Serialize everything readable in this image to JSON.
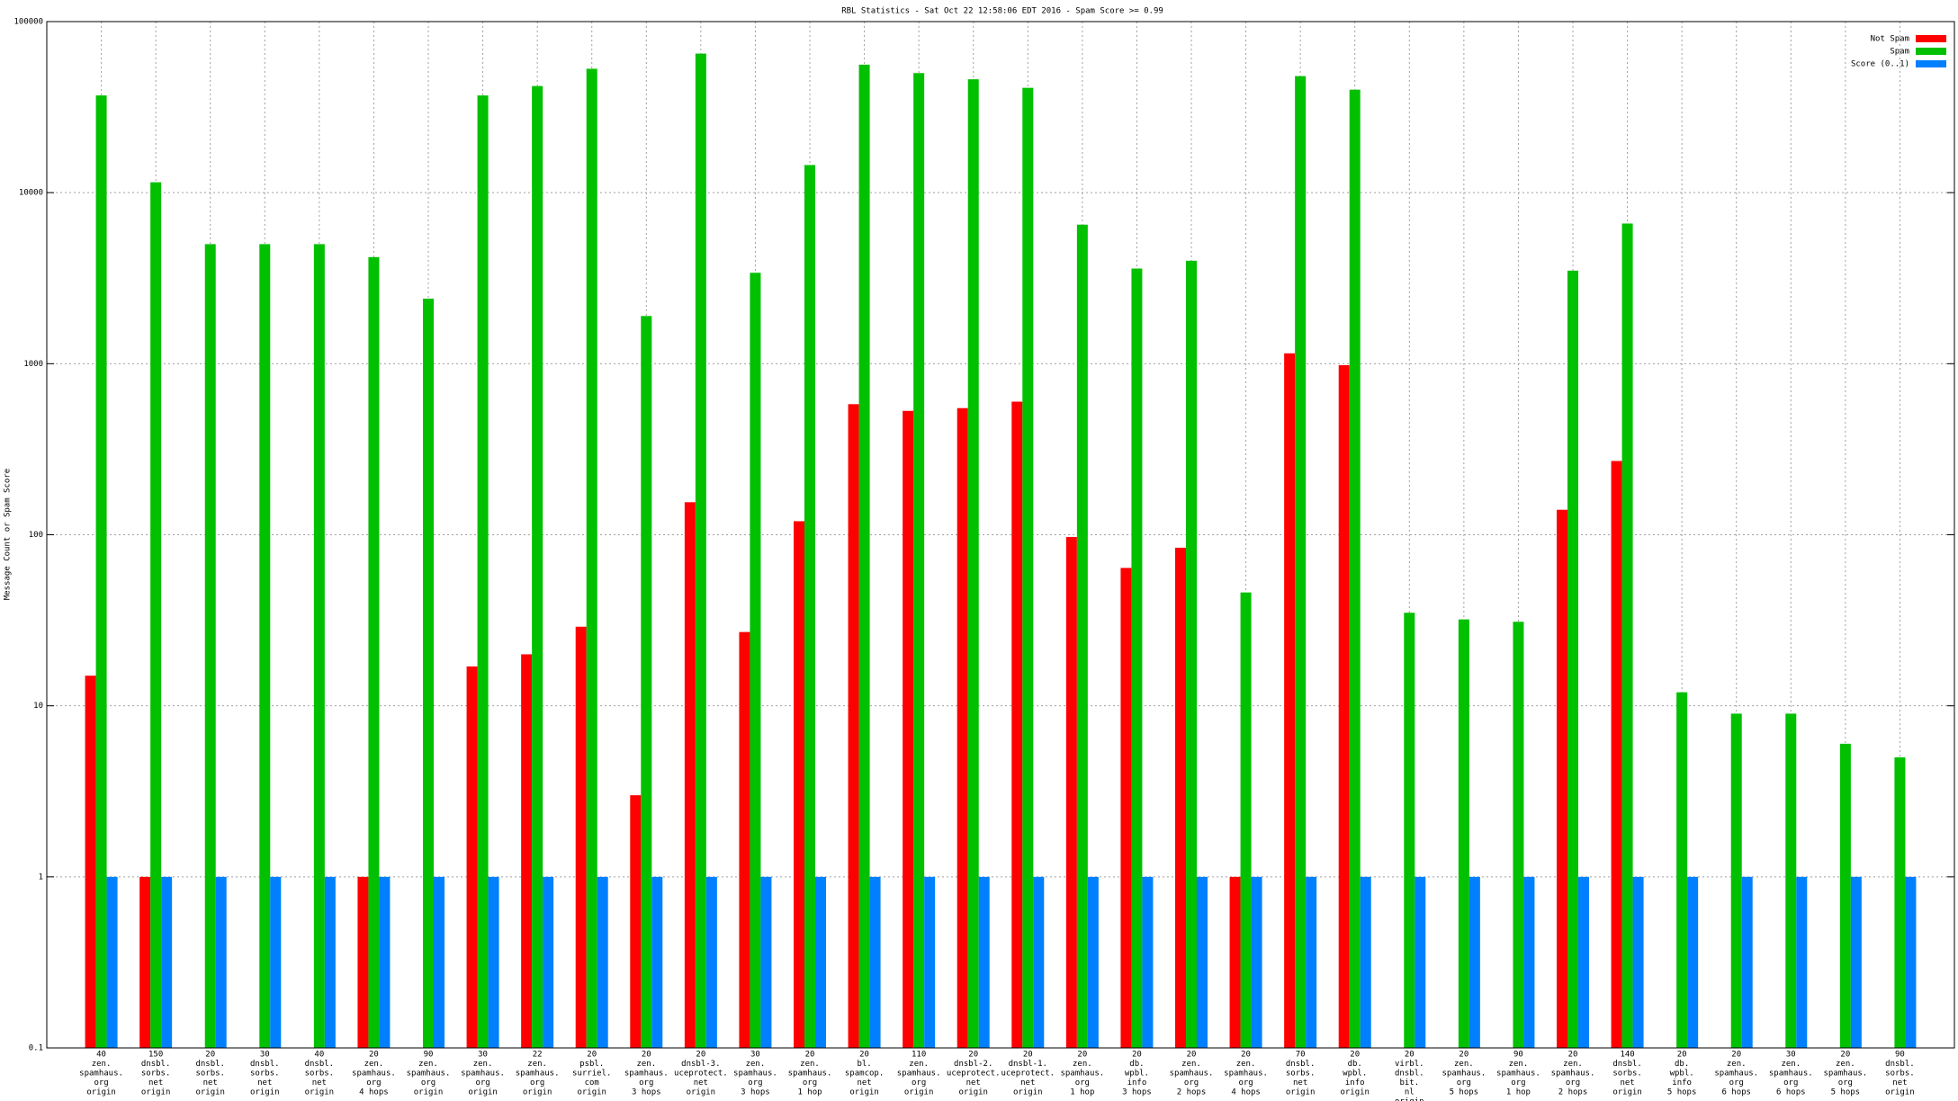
{
  "chart_data": {
    "type": "bar",
    "title": "RBL Statistics - Sat Oct 22 12:58:06 EDT 2016 - Spam Score >= 0.99",
    "y_label": "Message Count or Spam Score",
    "log_scale": true,
    "grid": true,
    "legend_position": "top-right",
    "ylim": [
      0.1,
      100000
    ],
    "yticks": [
      0.1,
      1,
      10,
      100,
      1000,
      10000,
      100000
    ],
    "categories": [
      [
        "40",
        "zen.",
        "spamhaus.",
        "org",
        "origin"
      ],
      [
        "150",
        "dnsbl.",
        "sorbs.",
        "net",
        "origin"
      ],
      [
        "20",
        "dnsbl.",
        "sorbs.",
        "net",
        "origin"
      ],
      [
        "30",
        "dnsbl.",
        "sorbs.",
        "net",
        "origin"
      ],
      [
        "40",
        "dnsbl.",
        "sorbs.",
        "net",
        "origin"
      ],
      [
        "20",
        "zen.",
        "spamhaus.",
        "org",
        "4 hops"
      ],
      [
        "90",
        "zen.",
        "spamhaus.",
        "org",
        "origin"
      ],
      [
        "30",
        "zen.",
        "spamhaus.",
        "org",
        "origin"
      ],
      [
        "22",
        "zen.",
        "spamhaus.",
        "org",
        "origin"
      ],
      [
        "20",
        "psbl.",
        "surriel.",
        "com",
        "origin"
      ],
      [
        "20",
        "zen.",
        "spamhaus.",
        "org",
        "3 hops"
      ],
      [
        "20",
        "dnsbl-3.",
        "uceprotect.",
        "net",
        "origin"
      ],
      [
        "30",
        "zen.",
        "spamhaus.",
        "org",
        "3 hops"
      ],
      [
        "20",
        "zen.",
        "spamhaus.",
        "org",
        "1 hop"
      ],
      [
        "20",
        "bl.",
        "spamcop.",
        "net",
        "origin"
      ],
      [
        "110",
        "zen.",
        "spamhaus.",
        "org",
        "origin"
      ],
      [
        "20",
        "dnsbl-2.",
        "uceprotect.",
        "net",
        "origin"
      ],
      [
        "20",
        "dnsbl-1.",
        "uceprotect.",
        "net",
        "origin"
      ],
      [
        "20",
        "zen.",
        "spamhaus.",
        "org",
        "1 hop"
      ],
      [
        "20",
        "db.",
        "wpbl.",
        "info",
        "3 hops"
      ],
      [
        "20",
        "zen.",
        "spamhaus.",
        "org",
        "2 hops"
      ],
      [
        "20",
        "zen.",
        "spamhaus.",
        "org",
        "4 hops"
      ],
      [
        "70",
        "dnsbl.",
        "sorbs.",
        "net",
        "origin"
      ],
      [
        "20",
        "db.",
        "wpbl.",
        "info",
        "origin"
      ],
      [
        "20",
        "virbl.",
        "dnsbl.",
        "bit.",
        "nl",
        "origin"
      ],
      [
        "20",
        "zen.",
        "spamhaus.",
        "org",
        "5 hops"
      ],
      [
        "90",
        "zen.",
        "spamhaus.",
        "org",
        "1 hop"
      ],
      [
        "20",
        "zen.",
        "spamhaus.",
        "org",
        "2 hops"
      ],
      [
        "140",
        "dnsbl.",
        "sorbs.",
        "net",
        "origin"
      ],
      [
        "20",
        "db.",
        "wpbl.",
        "info",
        "5 hops"
      ],
      [
        "20",
        "zen.",
        "spamhaus.",
        "org",
        "6 hops"
      ],
      [
        "30",
        "zen.",
        "spamhaus.",
        "org",
        "6 hops"
      ],
      [
        "20",
        "zen.",
        "spamhaus.",
        "org",
        "5 hops"
      ],
      [
        "90",
        "dnsbl.",
        "sorbs.",
        "net",
        "origin"
      ]
    ],
    "series": [
      {
        "name": "Not Spam",
        "color": "#ff0000",
        "values": [
          15,
          1,
          null,
          null,
          null,
          1,
          null,
          17,
          20,
          29,
          3,
          155,
          27,
          120,
          580,
          530,
          550,
          600,
          97,
          64,
          84,
          1,
          1150,
          980,
          null,
          null,
          null,
          140,
          270,
          null,
          null,
          null,
          null,
          null
        ]
      },
      {
        "name": "Spam",
        "color": "#00c000",
        "values": [
          37000,
          11500,
          5000,
          5000,
          5000,
          4200,
          2400,
          37000,
          42000,
          53000,
          1900,
          65000,
          3400,
          14500,
          56000,
          50000,
          46000,
          41000,
          6500,
          3600,
          4000,
          46,
          48000,
          40000,
          35,
          32,
          31,
          3500,
          6600,
          12,
          9,
          9,
          6,
          5
        ]
      },
      {
        "name": "Score (0..1)",
        "color": "#0080ff",
        "values": [
          1,
          1,
          1,
          1,
          1,
          1,
          1,
          1,
          1,
          1,
          1,
          1,
          1,
          1,
          1,
          1,
          1,
          1,
          1,
          1,
          1,
          1,
          1,
          1,
          1,
          1,
          1,
          1,
          1,
          1,
          1,
          1,
          1,
          1
        ]
      }
    ]
  }
}
